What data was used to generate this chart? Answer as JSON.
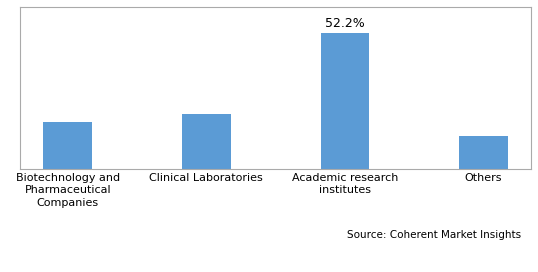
{
  "categories": [
    "Biotechnology and\nPharmaceutical\nCompanies",
    "Clinical Laboratories",
    "Academic research\ninstitutes",
    "Others"
  ],
  "values": [
    18.0,
    21.0,
    52.2,
    12.5
  ],
  "bar_color": "#5b9bd5",
  "label_only_index": 2,
  "label_text": "52.2%",
  "source_text": "Source: Coherent Market Insights",
  "ylim": [
    0,
    62
  ],
  "bar_width": 0.35,
  "background_color": "#ffffff",
  "label_fontsize": 9,
  "tick_fontsize": 8,
  "source_fontsize": 7.5,
  "border_color": "#aaaaaa"
}
